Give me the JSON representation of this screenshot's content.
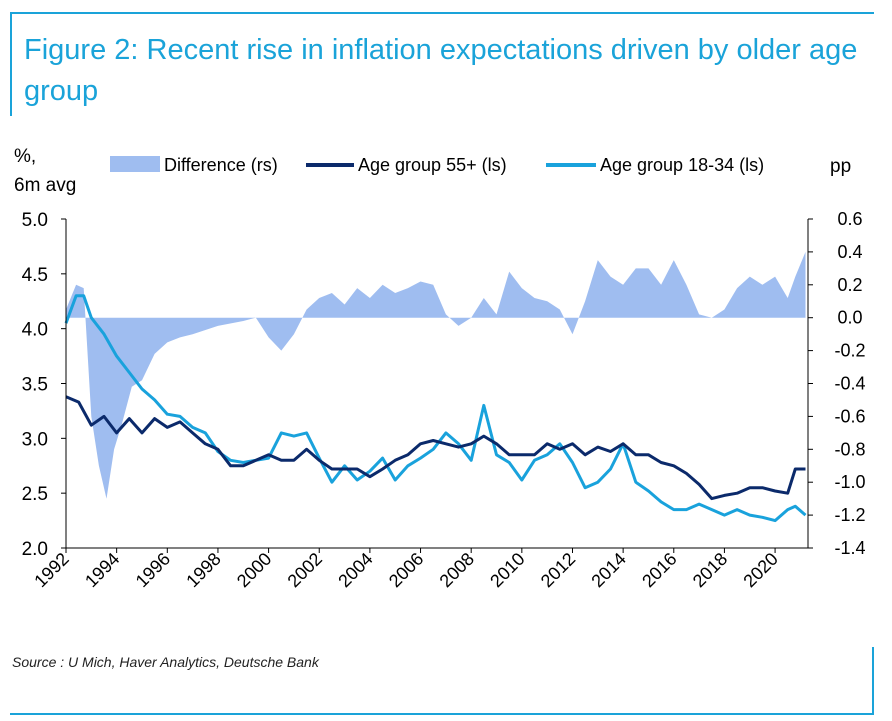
{
  "title": "Figure 2: Recent rise in inflation expectations driven by older age group",
  "source": "Source : U Mich, Haver Analytics, Deutsche Bank",
  "chart_data": {
    "type": "line",
    "left_axis_label": "%,\n6m avg",
    "right_axis_label": "pp",
    "ylim_left": [
      2.0,
      5.0
    ],
    "ylim_right": [
      -1.4,
      0.6
    ],
    "xlim": [
      1992,
      2021.3
    ],
    "x_tick_labels": [
      "1992",
      "1994",
      "1996",
      "1998",
      "2000",
      "2002",
      "2004",
      "2006",
      "2008",
      "2010",
      "2012",
      "2014",
      "2016",
      "2018",
      "2020"
    ],
    "y_left_tick_labels": [
      "5.0",
      "4.5",
      "4.0",
      "3.5",
      "3.0",
      "2.5",
      "2.0"
    ],
    "y_right_tick_labels": [
      "0.6",
      "0.4",
      "0.2",
      "0.0",
      "-0.2",
      "-0.4",
      "-0.6",
      "-0.8",
      "-1.0",
      "-1.2",
      "-1.4"
    ],
    "legend": [
      {
        "name": "Difference (rs)",
        "kind": "area"
      },
      {
        "name": "Age group 55+ (ls)",
        "kind": "line"
      },
      {
        "name": "Age group 18-34 (ls)",
        "kind": "line"
      }
    ],
    "colors": {
      "difference": "#9fbdf0",
      "older": "#0b2a6b",
      "younger": "#19a2dc"
    },
    "series": [
      {
        "name": "Age group 55+ (ls)",
        "axis": "left",
        "points": [
          [
            1992,
            3.38
          ],
          [
            1992.5,
            3.33
          ],
          [
            1993,
            3.12
          ],
          [
            1993.5,
            3.2
          ],
          [
            1994,
            3.05
          ],
          [
            1994.5,
            3.18
          ],
          [
            1995,
            3.05
          ],
          [
            1995.5,
            3.18
          ],
          [
            1996,
            3.1
          ],
          [
            1996.5,
            3.15
          ],
          [
            1997,
            3.05
          ],
          [
            1997.5,
            2.95
          ],
          [
            1998,
            2.9
          ],
          [
            1998.5,
            2.75
          ],
          [
            1999,
            2.75
          ],
          [
            1999.5,
            2.8
          ],
          [
            2000,
            2.85
          ],
          [
            2000.5,
            2.8
          ],
          [
            2001,
            2.8
          ],
          [
            2001.5,
            2.9
          ],
          [
            2002,
            2.8
          ],
          [
            2002.5,
            2.72
          ],
          [
            2003,
            2.72
          ],
          [
            2003.5,
            2.72
          ],
          [
            2004,
            2.65
          ],
          [
            2004.5,
            2.72
          ],
          [
            2005,
            2.8
          ],
          [
            2005.5,
            2.85
          ],
          [
            2006,
            2.95
          ],
          [
            2006.5,
            2.98
          ],
          [
            2007,
            2.95
          ],
          [
            2007.5,
            2.92
          ],
          [
            2008,
            2.95
          ],
          [
            2008.5,
            3.02
          ],
          [
            2009,
            2.95
          ],
          [
            2009.5,
            2.85
          ],
          [
            2010,
            2.85
          ],
          [
            2010.5,
            2.85
          ],
          [
            2011,
            2.95
          ],
          [
            2011.5,
            2.9
          ],
          [
            2012,
            2.95
          ],
          [
            2012.5,
            2.85
          ],
          [
            2013,
            2.92
          ],
          [
            2013.5,
            2.88
          ],
          [
            2014,
            2.95
          ],
          [
            2014.5,
            2.85
          ],
          [
            2015,
            2.85
          ],
          [
            2015.5,
            2.78
          ],
          [
            2016,
            2.75
          ],
          [
            2016.5,
            2.68
          ],
          [
            2017,
            2.58
          ],
          [
            2017.5,
            2.45
          ],
          [
            2018,
            2.48
          ],
          [
            2018.5,
            2.5
          ],
          [
            2019,
            2.55
          ],
          [
            2019.5,
            2.55
          ],
          [
            2020,
            2.52
          ],
          [
            2020.5,
            2.5
          ],
          [
            2020.8,
            2.72
          ],
          [
            2021.2,
            2.72
          ]
        ]
      },
      {
        "name": "Age group 18-34 (ls)",
        "axis": "left",
        "points": [
          [
            1992,
            4.05
          ],
          [
            1992.4,
            4.3
          ],
          [
            1992.7,
            4.3
          ],
          [
            1993,
            4.1
          ],
          [
            1993.5,
            3.95
          ],
          [
            1994,
            3.75
          ],
          [
            1994.5,
            3.6
          ],
          [
            1995,
            3.45
          ],
          [
            1995.5,
            3.35
          ],
          [
            1996,
            3.22
          ],
          [
            1996.5,
            3.2
          ],
          [
            1997,
            3.1
          ],
          [
            1997.5,
            3.05
          ],
          [
            1998,
            2.88
          ],
          [
            1998.5,
            2.8
          ],
          [
            1999,
            2.78
          ],
          [
            1999.5,
            2.8
          ],
          [
            2000,
            2.82
          ],
          [
            2000.5,
            3.05
          ],
          [
            2001,
            3.02
          ],
          [
            2001.5,
            3.05
          ],
          [
            2002,
            2.82
          ],
          [
            2002.5,
            2.6
          ],
          [
            2003,
            2.75
          ],
          [
            2003.5,
            2.62
          ],
          [
            2004,
            2.7
          ],
          [
            2004.5,
            2.82
          ],
          [
            2005,
            2.62
          ],
          [
            2005.5,
            2.75
          ],
          [
            2006,
            2.82
          ],
          [
            2006.5,
            2.9
          ],
          [
            2007,
            3.05
          ],
          [
            2007.5,
            2.95
          ],
          [
            2008,
            2.8
          ],
          [
            2008.5,
            3.3
          ],
          [
            2009,
            2.85
          ],
          [
            2009.5,
            2.78
          ],
          [
            2010,
            2.62
          ],
          [
            2010.5,
            2.8
          ],
          [
            2011,
            2.85
          ],
          [
            2011.5,
            2.95
          ],
          [
            2012,
            2.78
          ],
          [
            2012.5,
            2.55
          ],
          [
            2013,
            2.6
          ],
          [
            2013.5,
            2.72
          ],
          [
            2014,
            2.95
          ],
          [
            2014.5,
            2.6
          ],
          [
            2015,
            2.52
          ],
          [
            2015.5,
            2.42
          ],
          [
            2016,
            2.35
          ],
          [
            2016.5,
            2.35
          ],
          [
            2017,
            2.4
          ],
          [
            2017.5,
            2.35
          ],
          [
            2018,
            2.3
          ],
          [
            2018.5,
            2.35
          ],
          [
            2019,
            2.3
          ],
          [
            2019.5,
            2.28
          ],
          [
            2020,
            2.25
          ],
          [
            2020.5,
            2.35
          ],
          [
            2020.8,
            2.38
          ],
          [
            2021.2,
            2.3
          ]
        ]
      },
      {
        "name": "Difference (rs)",
        "axis": "right",
        "points": [
          [
            1992,
            0.05
          ],
          [
            1992.4,
            0.2
          ],
          [
            1992.7,
            0.18
          ],
          [
            1993,
            -0.6
          ],
          [
            1993.3,
            -0.9
          ],
          [
            1993.6,
            -1.1
          ],
          [
            1993.9,
            -0.8
          ],
          [
            1994.2,
            -0.65
          ],
          [
            1994.6,
            -0.42
          ],
          [
            1995,
            -0.38
          ],
          [
            1995.5,
            -0.22
          ],
          [
            1996,
            -0.15
          ],
          [
            1996.5,
            -0.12
          ],
          [
            1997,
            -0.1
          ],
          [
            1998,
            -0.05
          ],
          [
            1999,
            -0.02
          ],
          [
            1999.5,
            0.0
          ],
          [
            2000,
            -0.12
          ],
          [
            2000.5,
            -0.2
          ],
          [
            2001,
            -0.1
          ],
          [
            2001.5,
            0.05
          ],
          [
            2002,
            0.12
          ],
          [
            2002.5,
            0.15
          ],
          [
            2003,
            0.08
          ],
          [
            2003.5,
            0.18
          ],
          [
            2004,
            0.12
          ],
          [
            2004.5,
            0.2
          ],
          [
            2005,
            0.15
          ],
          [
            2005.5,
            0.18
          ],
          [
            2006,
            0.22
          ],
          [
            2006.5,
            0.2
          ],
          [
            2007,
            0.02
          ],
          [
            2007.5,
            -0.05
          ],
          [
            2008,
            0.0
          ],
          [
            2008.5,
            0.12
          ],
          [
            2009,
            0.02
          ],
          [
            2009.5,
            0.28
          ],
          [
            2010,
            0.18
          ],
          [
            2010.5,
            0.12
          ],
          [
            2011,
            0.1
          ],
          [
            2011.5,
            0.05
          ],
          [
            2012,
            -0.1
          ],
          [
            2012.5,
            0.1
          ],
          [
            2013,
            0.35
          ],
          [
            2013.5,
            0.25
          ],
          [
            2014,
            0.2
          ],
          [
            2014.5,
            0.3
          ],
          [
            2015,
            0.3
          ],
          [
            2015.5,
            0.2
          ],
          [
            2016,
            0.35
          ],
          [
            2016.5,
            0.2
          ],
          [
            2017,
            0.02
          ],
          [
            2017.5,
            0.0
          ],
          [
            2018,
            0.05
          ],
          [
            2018.5,
            0.18
          ],
          [
            2019,
            0.25
          ],
          [
            2019.5,
            0.2
          ],
          [
            2020,
            0.25
          ],
          [
            2020.5,
            0.12
          ],
          [
            2020.8,
            0.25
          ],
          [
            2021.2,
            0.4
          ]
        ]
      }
    ]
  }
}
